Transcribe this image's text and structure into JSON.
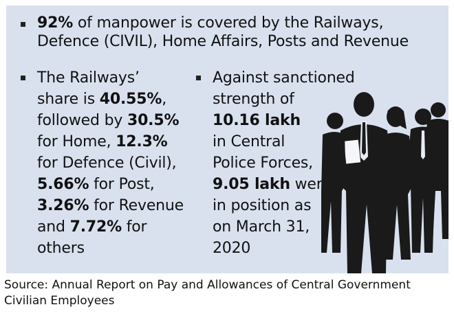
{
  "colors": {
    "panel_background": "#d9e1ef",
    "text": "#111111",
    "silhouette": "#1a1a1a"
  },
  "bullet1": {
    "line1": {
      "b": "92%",
      "r": " of manpower is covered by the Railways,"
    },
    "line2": "Defence (CIVIL), Home Affairs, Posts and Revenue"
  },
  "bullet2": {
    "lines": [
      {
        "r": "The Railways’"
      },
      {
        "r": "share is ",
        "b": "40.55%",
        "r2": ","
      },
      {
        "r": "followed by ",
        "b": "30.5%"
      },
      {
        "r": "for Home, ",
        "b": "12.3%"
      },
      {
        "r": "for Defence (Civil),"
      },
      {
        "b": "5.66%",
        "r": " for Post,"
      },
      {
        "b": "3.26%",
        "r": " for Revenue"
      },
      {
        "r": "and ",
        "b": "7.72%",
        "r2": " for"
      },
      {
        "r": "others"
      }
    ]
  },
  "bullet3": {
    "lines": [
      {
        "r": "Against sanctioned"
      },
      {
        "r": "strength of"
      },
      {
        "b": "10.16 lakh"
      },
      {
        "r": "in Central"
      },
      {
        "r": "Police Forces,"
      },
      {
        "b": "9.05 lakh",
        "r": " were"
      },
      {
        "r": "in position as"
      },
      {
        "r": "on March 31,"
      },
      {
        "r": "2020"
      }
    ]
  },
  "illustration": {
    "icon": "business-people-silhouettes"
  },
  "source": {
    "line1": "Source: Annual Report on Pay and Allowances of Central Government",
    "line2": "Civilian Employees"
  }
}
